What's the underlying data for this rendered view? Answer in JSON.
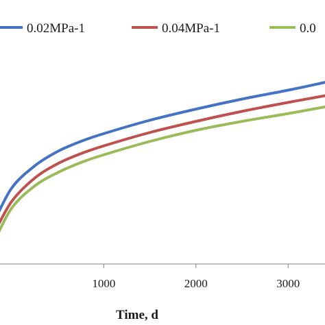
{
  "chart_data": {
    "type": "line",
    "xlabel": "Time, d",
    "ylabel": "",
    "title": "",
    "xlim": [
      -200,
      3400
    ],
    "x_ticks": [
      1000,
      2000,
      3000
    ],
    "y_range": [
      0,
      1
    ],
    "grid": false,
    "legend_position": "top",
    "series": [
      {
        "name": "0.02MPa-1",
        "color": "#4472C4",
        "x": [
          -200,
          0,
          250,
          500,
          750,
          1000,
          1500,
          2000,
          2500,
          3000,
          3400
        ],
        "y": [
          0.18,
          0.34,
          0.44,
          0.505,
          0.55,
          0.585,
          0.645,
          0.695,
          0.74,
          0.78,
          0.815
        ]
      },
      {
        "name": "0.04MPa-1",
        "color": "#C0504D",
        "x": [
          -200,
          0,
          250,
          500,
          750,
          1000,
          1500,
          2000,
          2500,
          3000,
          3400
        ],
        "y": [
          0.13,
          0.28,
          0.385,
          0.45,
          0.495,
          0.53,
          0.59,
          0.64,
          0.685,
          0.725,
          0.755
        ]
      },
      {
        "name": "0.0",
        "color": "#9BBB59",
        "x": [
          -200,
          0,
          250,
          500,
          750,
          1000,
          1500,
          2000,
          2500,
          3000,
          3400
        ],
        "y": [
          0.09,
          0.25,
          0.35,
          0.41,
          0.455,
          0.49,
          0.55,
          0.6,
          0.64,
          0.675,
          0.705
        ]
      }
    ]
  }
}
